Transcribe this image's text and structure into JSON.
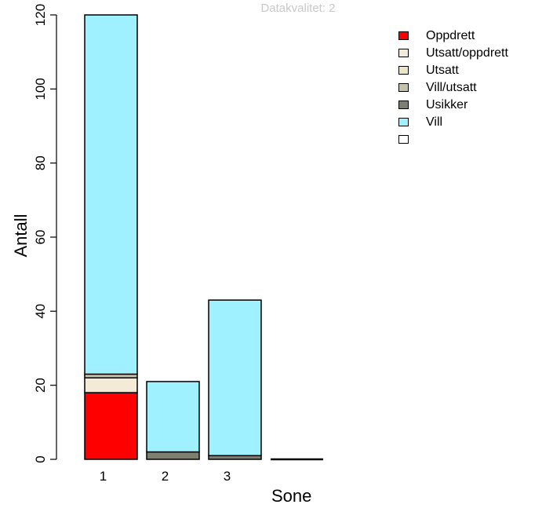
{
  "chart_data": {
    "type": "bar",
    "stacked": true,
    "subtitle": "Datakvalitet: 2",
    "xlabel": "Sone",
    "ylabel": "Antall",
    "ylim": [
      0,
      120
    ],
    "yticks": [
      0,
      20,
      40,
      60,
      80,
      100,
      120
    ],
    "categories": [
      "1",
      "2",
      "3",
      ""
    ],
    "series": [
      {
        "name": "Oppdrett",
        "color": "#ff0000",
        "values": [
          18,
          0,
          0,
          0
        ]
      },
      {
        "name": "Utsatt/oppdrett",
        "color": "#f3ebd8",
        "values": [
          4,
          0,
          0,
          0
        ]
      },
      {
        "name": "Utsatt",
        "color": "#eae6c4",
        "values": [
          0,
          0,
          0,
          0
        ]
      },
      {
        "name": "Vill/utsatt",
        "color": "#c6c2aa",
        "values": [
          1,
          0,
          0,
          0
        ]
      },
      {
        "name": "Usikker",
        "color": "#7e7f70",
        "values": [
          0,
          2,
          1,
          0
        ]
      },
      {
        "name": "Vill",
        "color": "#9ff1ff",
        "values": [
          97,
          19,
          42,
          0
        ]
      },
      {
        "name": "",
        "color": "#ffffff",
        "values": [
          0,
          0,
          0,
          0
        ]
      }
    ],
    "legend_position": "top-right"
  }
}
